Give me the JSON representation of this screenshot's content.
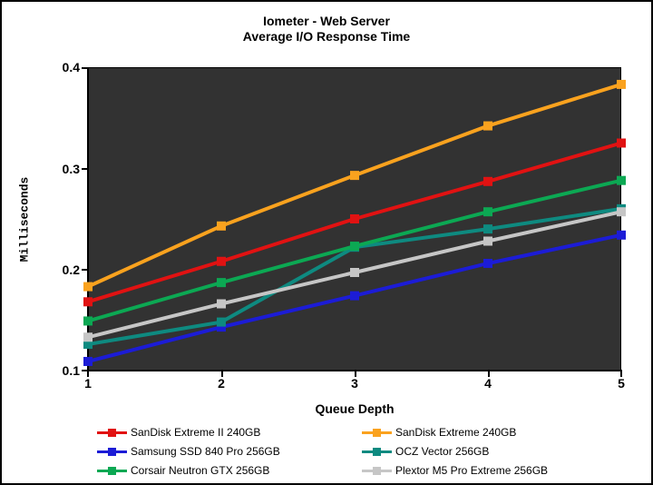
{
  "chart_data": {
    "type": "line",
    "title": "Iometer - Web Server",
    "subtitle": "Average I/O Response Time",
    "xlabel": "Queue Depth",
    "ylabel": "Milliseconds",
    "x": [
      1,
      2,
      3,
      4,
      5
    ],
    "ylim": [
      0.1,
      0.4
    ],
    "yticks": [
      0.1,
      0.2,
      0.3,
      0.4
    ],
    "grid": false,
    "plot_bg": "#323232",
    "legend_position": "bottom",
    "marker": "square",
    "series": [
      {
        "name": "SanDisk Extreme II 240GB",
        "color": "#e11212",
        "values": [
          0.168,
          0.208,
          0.25,
          0.287,
          0.325
        ]
      },
      {
        "name": "SanDisk Extreme 240GB",
        "color": "#faa21e",
        "values": [
          0.183,
          0.243,
          0.293,
          0.342,
          0.383
        ]
      },
      {
        "name": "Samsung SSD 840 Pro 256GB",
        "color": "#1c1cd6",
        "values": [
          0.109,
          0.143,
          0.174,
          0.206,
          0.234
        ]
      },
      {
        "name": "OCZ Vector 256GB",
        "color": "#0e8a80",
        "values": [
          0.126,
          0.148,
          0.222,
          0.24,
          0.26
        ]
      },
      {
        "name": "Corsair Neutron GTX 256GB",
        "color": "#0ca853",
        "values": [
          0.149,
          0.187,
          0.223,
          0.257,
          0.288
        ]
      },
      {
        "name": "Plextor M5 Pro Extreme 256GB",
        "color": "#c6c6c6",
        "values": [
          0.133,
          0.166,
          0.197,
          0.228,
          0.257
        ]
      }
    ]
  }
}
